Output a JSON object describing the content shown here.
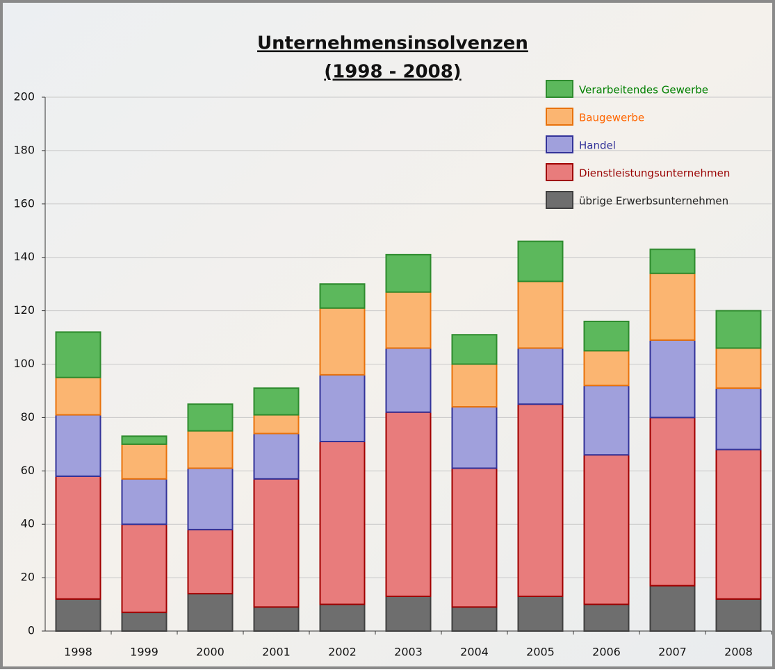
{
  "chart_data": {
    "type": "stacked_bar",
    "title": [
      "Unternehmensinsolvenzen",
      "(1998 - 2008)"
    ],
    "categories": [
      "1998",
      "1999",
      "2000",
      "2001",
      "2002",
      "2003",
      "2004",
      "2005",
      "2006",
      "2007",
      "2008"
    ],
    "series": [
      {
        "name": "übrige Erwerbsunternehmen",
        "color": "#6e6e6e",
        "values": [
          12,
          7,
          14,
          9,
          10,
          13,
          9,
          13,
          10,
          17,
          12
        ]
      },
      {
        "name": "Dienstleistungsunternehmen",
        "color": "#e87c7c",
        "values": [
          46,
          33,
          24,
          48,
          61,
          69,
          52,
          72,
          56,
          63,
          56
        ]
      },
      {
        "name": "Handel",
        "color": "#a0a0dc",
        "values": [
          23,
          17,
          23,
          17,
          25,
          24,
          23,
          21,
          26,
          29,
          23
        ]
      },
      {
        "name": "Baugewerbe",
        "color": "#fbb571",
        "values": [
          14,
          13,
          14,
          7,
          25,
          21,
          16,
          25,
          13,
          25,
          15
        ]
      },
      {
        "name": "Verarbeitendes Gewerbe",
        "color": "#5cb85c",
        "values": [
          17,
          3,
          10,
          10,
          9,
          14,
          11,
          15,
          11,
          9,
          14
        ]
      }
    ],
    "ylim": [
      0,
      200
    ],
    "yticks": [
      0,
      20,
      40,
      60,
      80,
      100,
      120,
      140,
      160,
      180,
      200
    ],
    "grid": true
  }
}
